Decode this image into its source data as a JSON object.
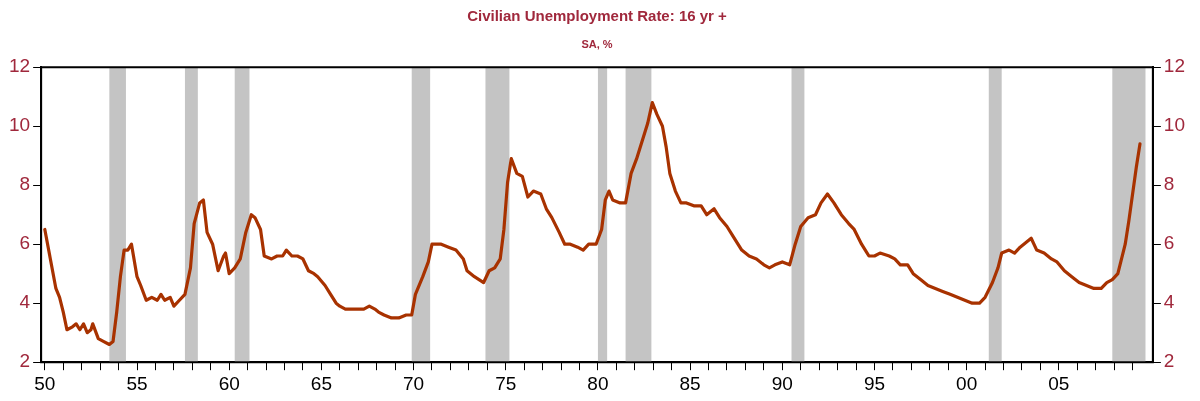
{
  "chart_data": {
    "type": "line",
    "title": "Civilian Unemployment Rate: 16 yr +",
    "subtitle": "SA, %",
    "x": [
      1950.0,
      1950.3,
      1950.6,
      1950.8,
      1951.0,
      1951.2,
      1951.5,
      1951.7,
      1951.9,
      1952.1,
      1952.3,
      1952.5,
      1952.6,
      1952.9,
      1953.2,
      1953.5,
      1953.7,
      1953.9,
      1954.1,
      1954.3,
      1954.5,
      1954.7,
      1955.0,
      1955.2,
      1955.5,
      1955.8,
      1956.1,
      1956.3,
      1956.5,
      1956.8,
      1957.0,
      1957.3,
      1957.6,
      1957.9,
      1958.1,
      1958.4,
      1958.6,
      1958.8,
      1959.1,
      1959.4,
      1959.7,
      1959.8,
      1960.0,
      1960.3,
      1960.6,
      1960.9,
      1961.2,
      1961.4,
      1961.7,
      1961.9,
      1962.3,
      1962.6,
      1962.9,
      1963.1,
      1963.4,
      1963.7,
      1964.0,
      1964.3,
      1964.6,
      1964.8,
      1965.2,
      1965.5,
      1965.8,
      1966.0,
      1966.3,
      1966.6,
      1966.9,
      1967.3,
      1967.6,
      1967.9,
      1968.1,
      1968.4,
      1968.8,
      1969.2,
      1969.6,
      1969.9,
      1970.1,
      1970.5,
      1970.8,
      1971.0,
      1971.5,
      1971.9,
      1972.3,
      1972.7,
      1972.9,
      1973.3,
      1973.8,
      1974.1,
      1974.4,
      1974.7,
      1974.9,
      1975.1,
      1975.3,
      1975.6,
      1975.9,
      1976.2,
      1976.5,
      1976.9,
      1977.2,
      1977.5,
      1977.9,
      1978.2,
      1978.5,
      1978.9,
      1979.2,
      1979.5,
      1979.9,
      1980.2,
      1980.4,
      1980.6,
      1980.8,
      1981.2,
      1981.5,
      1981.8,
      1982.1,
      1982.4,
      1982.7,
      1982.95,
      1983.2,
      1983.5,
      1983.7,
      1983.9,
      1984.2,
      1984.5,
      1984.8,
      1985.2,
      1985.6,
      1985.9,
      1986.1,
      1986.3,
      1986.6,
      1987.0,
      1987.4,
      1987.8,
      1988.2,
      1988.6,
      1989.0,
      1989.3,
      1989.6,
      1990.0,
      1990.4,
      1990.7,
      1991.0,
      1991.4,
      1991.8,
      1992.1,
      1992.45,
      1992.8,
      1993.2,
      1993.6,
      1993.9,
      1994.3,
      1994.7,
      1995.0,
      1995.3,
      1995.8,
      1996.1,
      1996.4,
      1996.8,
      1997.1,
      1997.5,
      1997.9,
      1998.3,
      1998.7,
      1999.1,
      1999.5,
      1999.9,
      2000.3,
      2000.7,
      2001.0,
      2001.4,
      2001.7,
      2001.9,
      2002.3,
      2002.6,
      2002.9,
      2003.3,
      2003.5,
      2003.8,
      2004.2,
      2004.6,
      2004.9,
      2005.3,
      2005.7,
      2006.1,
      2006.5,
      2006.9,
      2007.3,
      2007.6,
      2007.9,
      2008.2,
      2008.4,
      2008.6,
      2008.8,
      2009.0,
      2009.2,
      2009.4
    ],
    "series": [
      {
        "color": "#a83200",
        "values": [
          6.5,
          5.5,
          4.5,
          4.2,
          3.7,
          3.1,
          3.2,
          3.3,
          3.1,
          3.3,
          3.0,
          3.1,
          3.3,
          2.8,
          2.7,
          2.6,
          2.7,
          3.7,
          4.9,
          5.8,
          5.8,
          6.0,
          4.9,
          4.6,
          4.1,
          4.2,
          4.1,
          4.3,
          4.1,
          4.2,
          3.9,
          4.1,
          4.3,
          5.2,
          6.7,
          7.4,
          7.5,
          6.4,
          6.0,
          5.1,
          5.6,
          5.7,
          5.0,
          5.2,
          5.5,
          6.4,
          7.0,
          6.9,
          6.5,
          5.6,
          5.5,
          5.6,
          5.6,
          5.8,
          5.6,
          5.6,
          5.5,
          5.1,
          5.0,
          4.9,
          4.6,
          4.3,
          4.0,
          3.9,
          3.8,
          3.8,
          3.8,
          3.8,
          3.9,
          3.8,
          3.7,
          3.6,
          3.5,
          3.5,
          3.6,
          3.6,
          4.3,
          4.9,
          5.4,
          6.0,
          6.0,
          5.9,
          5.8,
          5.5,
          5.1,
          4.9,
          4.7,
          5.1,
          5.2,
          5.5,
          6.5,
          8.1,
          8.9,
          8.4,
          8.3,
          7.6,
          7.8,
          7.7,
          7.2,
          6.9,
          6.4,
          6.0,
          6.0,
          5.9,
          5.8,
          6.0,
          6.0,
          6.5,
          7.5,
          7.8,
          7.5,
          7.4,
          7.4,
          8.4,
          8.9,
          9.5,
          10.1,
          10.8,
          10.4,
          10.0,
          9.3,
          8.4,
          7.8,
          7.4,
          7.4,
          7.3,
          7.3,
          7.0,
          7.1,
          7.2,
          6.9,
          6.6,
          6.2,
          5.8,
          5.6,
          5.5,
          5.3,
          5.2,
          5.3,
          5.4,
          5.3,
          6.0,
          6.6,
          6.9,
          7.0,
          7.4,
          7.7,
          7.4,
          7.0,
          6.7,
          6.5,
          6.0,
          5.6,
          5.6,
          5.7,
          5.6,
          5.5,
          5.3,
          5.3,
          5.0,
          4.8,
          4.6,
          4.5,
          4.4,
          4.3,
          4.2,
          4.1,
          4.0,
          4.0,
          4.2,
          4.7,
          5.2,
          5.7,
          5.8,
          5.7,
          5.9,
          6.1,
          6.2,
          5.8,
          5.7,
          5.5,
          5.4,
          5.1,
          4.9,
          4.7,
          4.6,
          4.5,
          4.5,
          4.7,
          4.8,
          5.0,
          5.5,
          6.0,
          6.8,
          7.7,
          8.6,
          9.4
        ]
      }
    ],
    "xlim": [
      1949.8,
      2010.1
    ],
    "xticks": [
      {
        "value": 1950,
        "label": "50"
      },
      {
        "value": 1951,
        "label": null
      },
      {
        "value": 1952,
        "label": null
      },
      {
        "value": 1953,
        "label": null
      },
      {
        "value": 1954,
        "label": null
      },
      {
        "value": 1955,
        "label": "55"
      },
      {
        "value": 1956,
        "label": null
      },
      {
        "value": 1957,
        "label": null
      },
      {
        "value": 1958,
        "label": null
      },
      {
        "value": 1959,
        "label": null
      },
      {
        "value": 1960,
        "label": "60"
      },
      {
        "value": 1961,
        "label": null
      },
      {
        "value": 1962,
        "label": null
      },
      {
        "value": 1963,
        "label": null
      },
      {
        "value": 1964,
        "label": null
      },
      {
        "value": 1965,
        "label": "65"
      },
      {
        "value": 1966,
        "label": null
      },
      {
        "value": 1967,
        "label": null
      },
      {
        "value": 1968,
        "label": null
      },
      {
        "value": 1969,
        "label": null
      },
      {
        "value": 1970,
        "label": "70"
      },
      {
        "value": 1971,
        "label": null
      },
      {
        "value": 1972,
        "label": null
      },
      {
        "value": 1973,
        "label": null
      },
      {
        "value": 1974,
        "label": null
      },
      {
        "value": 1975,
        "label": "75"
      },
      {
        "value": 1976,
        "label": null
      },
      {
        "value": 1977,
        "label": null
      },
      {
        "value": 1978,
        "label": null
      },
      {
        "value": 1979,
        "label": null
      },
      {
        "value": 1980,
        "label": "80"
      },
      {
        "value": 1981,
        "label": null
      },
      {
        "value": 1982,
        "label": null
      },
      {
        "value": 1983,
        "label": null
      },
      {
        "value": 1984,
        "label": null
      },
      {
        "value": 1985,
        "label": "85"
      },
      {
        "value": 1986,
        "label": null
      },
      {
        "value": 1987,
        "label": null
      },
      {
        "value": 1988,
        "label": null
      },
      {
        "value": 1989,
        "label": null
      },
      {
        "value": 1990,
        "label": "90"
      },
      {
        "value": 1991,
        "label": null
      },
      {
        "value": 1992,
        "label": null
      },
      {
        "value": 1993,
        "label": null
      },
      {
        "value": 1994,
        "label": null
      },
      {
        "value": 1995,
        "label": "95"
      },
      {
        "value": 1996,
        "label": null
      },
      {
        "value": 1997,
        "label": null
      },
      {
        "value": 1998,
        "label": null
      },
      {
        "value": 1999,
        "label": null
      },
      {
        "value": 2000,
        "label": "00"
      },
      {
        "value": 2001,
        "label": null
      },
      {
        "value": 2002,
        "label": null
      },
      {
        "value": 2003,
        "label": null
      },
      {
        "value": 2004,
        "label": null
      },
      {
        "value": 2005,
        "label": "05"
      },
      {
        "value": 2006,
        "label": null
      },
      {
        "value": 2007,
        "label": null
      },
      {
        "value": 2008,
        "label": null
      },
      {
        "value": 2009,
        "label": null
      }
    ],
    "ylim": [
      2,
      12
    ],
    "yticks": [
      2,
      4,
      6,
      8,
      10,
      12
    ],
    "y2lim": [
      2,
      12
    ],
    "y2ticks": [
      2,
      4,
      6,
      8,
      10,
      12
    ],
    "bands": [
      {
        "axis": "x",
        "from": 1953.5,
        "to": 1954.4,
        "color": "#c4c4c4"
      },
      {
        "axis": "x",
        "from": 1957.6,
        "to": 1958.3,
        "color": "#c4c4c4"
      },
      {
        "axis": "x",
        "from": 1960.3,
        "to": 1961.1,
        "color": "#c4c4c4"
      },
      {
        "axis": "x",
        "from": 1969.9,
        "to": 1970.9,
        "color": "#c4c4c4"
      },
      {
        "axis": "x",
        "from": 1973.9,
        "to": 1975.2,
        "color": "#c4c4c4"
      },
      {
        "axis": "x",
        "from": 1980.0,
        "to": 1980.5,
        "color": "#c4c4c4"
      },
      {
        "axis": "x",
        "from": 1981.5,
        "to": 1982.9,
        "color": "#c4c4c4"
      },
      {
        "axis": "x",
        "from": 1990.5,
        "to": 1991.2,
        "color": "#c4c4c4"
      },
      {
        "axis": "x",
        "from": 2001.2,
        "to": 2001.9,
        "color": "#c4c4c4"
      },
      {
        "axis": "x",
        "from": 2007.9,
        "to": 2009.7,
        "color": "#c4c4c4"
      }
    ],
    "grid": false,
    "legend": false,
    "line_style": "solid",
    "marker": "none"
  }
}
